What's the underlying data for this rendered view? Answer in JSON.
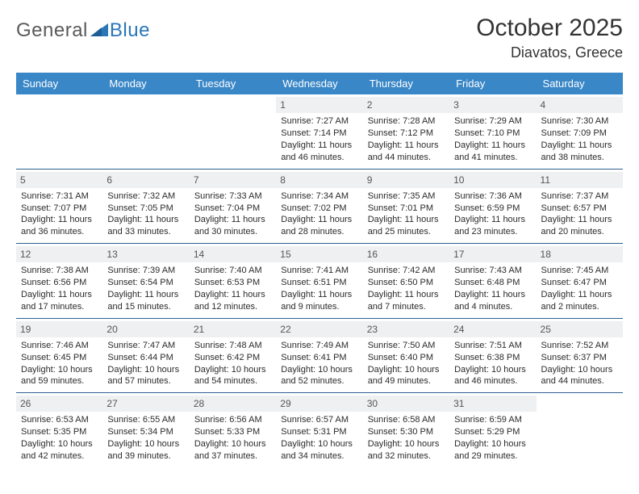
{
  "logo": {
    "text_general": "General",
    "text_blue": "Blue",
    "triangle_color": "#2a77b8"
  },
  "title": "October 2025",
  "location": "Diavatos, Greece",
  "colors": {
    "header_bg": "#3a87c7",
    "header_text": "#ffffff",
    "row_divider": "#2f6090",
    "daynum_bg": "#eef0f2",
    "daynum_text": "#555555",
    "body_text": "#2b2b2b"
  },
  "weekdays": [
    "Sunday",
    "Monday",
    "Tuesday",
    "Wednesday",
    "Thursday",
    "Friday",
    "Saturday"
  ],
  "weeks": [
    [
      null,
      null,
      null,
      {
        "n": "1",
        "sunrise": "7:27 AM",
        "sunset": "7:14 PM",
        "daylight": "11 hours and 46 minutes."
      },
      {
        "n": "2",
        "sunrise": "7:28 AM",
        "sunset": "7:12 PM",
        "daylight": "11 hours and 44 minutes."
      },
      {
        "n": "3",
        "sunrise": "7:29 AM",
        "sunset": "7:10 PM",
        "daylight": "11 hours and 41 minutes."
      },
      {
        "n": "4",
        "sunrise": "7:30 AM",
        "sunset": "7:09 PM",
        "daylight": "11 hours and 38 minutes."
      }
    ],
    [
      {
        "n": "5",
        "sunrise": "7:31 AM",
        "sunset": "7:07 PM",
        "daylight": "11 hours and 36 minutes."
      },
      {
        "n": "6",
        "sunrise": "7:32 AM",
        "sunset": "7:05 PM",
        "daylight": "11 hours and 33 minutes."
      },
      {
        "n": "7",
        "sunrise": "7:33 AM",
        "sunset": "7:04 PM",
        "daylight": "11 hours and 30 minutes."
      },
      {
        "n": "8",
        "sunrise": "7:34 AM",
        "sunset": "7:02 PM",
        "daylight": "11 hours and 28 minutes."
      },
      {
        "n": "9",
        "sunrise": "7:35 AM",
        "sunset": "7:01 PM",
        "daylight": "11 hours and 25 minutes."
      },
      {
        "n": "10",
        "sunrise": "7:36 AM",
        "sunset": "6:59 PM",
        "daylight": "11 hours and 23 minutes."
      },
      {
        "n": "11",
        "sunrise": "7:37 AM",
        "sunset": "6:57 PM",
        "daylight": "11 hours and 20 minutes."
      }
    ],
    [
      {
        "n": "12",
        "sunrise": "7:38 AM",
        "sunset": "6:56 PM",
        "daylight": "11 hours and 17 minutes."
      },
      {
        "n": "13",
        "sunrise": "7:39 AM",
        "sunset": "6:54 PM",
        "daylight": "11 hours and 15 minutes."
      },
      {
        "n": "14",
        "sunrise": "7:40 AM",
        "sunset": "6:53 PM",
        "daylight": "11 hours and 12 minutes."
      },
      {
        "n": "15",
        "sunrise": "7:41 AM",
        "sunset": "6:51 PM",
        "daylight": "11 hours and 9 minutes."
      },
      {
        "n": "16",
        "sunrise": "7:42 AM",
        "sunset": "6:50 PM",
        "daylight": "11 hours and 7 minutes."
      },
      {
        "n": "17",
        "sunrise": "7:43 AM",
        "sunset": "6:48 PM",
        "daylight": "11 hours and 4 minutes."
      },
      {
        "n": "18",
        "sunrise": "7:45 AM",
        "sunset": "6:47 PM",
        "daylight": "11 hours and 2 minutes."
      }
    ],
    [
      {
        "n": "19",
        "sunrise": "7:46 AM",
        "sunset": "6:45 PM",
        "daylight": "10 hours and 59 minutes."
      },
      {
        "n": "20",
        "sunrise": "7:47 AM",
        "sunset": "6:44 PM",
        "daylight": "10 hours and 57 minutes."
      },
      {
        "n": "21",
        "sunrise": "7:48 AM",
        "sunset": "6:42 PM",
        "daylight": "10 hours and 54 minutes."
      },
      {
        "n": "22",
        "sunrise": "7:49 AM",
        "sunset": "6:41 PM",
        "daylight": "10 hours and 52 minutes."
      },
      {
        "n": "23",
        "sunrise": "7:50 AM",
        "sunset": "6:40 PM",
        "daylight": "10 hours and 49 minutes."
      },
      {
        "n": "24",
        "sunrise": "7:51 AM",
        "sunset": "6:38 PM",
        "daylight": "10 hours and 46 minutes."
      },
      {
        "n": "25",
        "sunrise": "7:52 AM",
        "sunset": "6:37 PM",
        "daylight": "10 hours and 44 minutes."
      }
    ],
    [
      {
        "n": "26",
        "sunrise": "6:53 AM",
        "sunset": "5:35 PM",
        "daylight": "10 hours and 42 minutes."
      },
      {
        "n": "27",
        "sunrise": "6:55 AM",
        "sunset": "5:34 PM",
        "daylight": "10 hours and 39 minutes."
      },
      {
        "n": "28",
        "sunrise": "6:56 AM",
        "sunset": "5:33 PM",
        "daylight": "10 hours and 37 minutes."
      },
      {
        "n": "29",
        "sunrise": "6:57 AM",
        "sunset": "5:31 PM",
        "daylight": "10 hours and 34 minutes."
      },
      {
        "n": "30",
        "sunrise": "6:58 AM",
        "sunset": "5:30 PM",
        "daylight": "10 hours and 32 minutes."
      },
      {
        "n": "31",
        "sunrise": "6:59 AM",
        "sunset": "5:29 PM",
        "daylight": "10 hours and 29 minutes."
      },
      null
    ]
  ],
  "labels": {
    "sunrise": "Sunrise:",
    "sunset": "Sunset:",
    "daylight": "Daylight:"
  }
}
